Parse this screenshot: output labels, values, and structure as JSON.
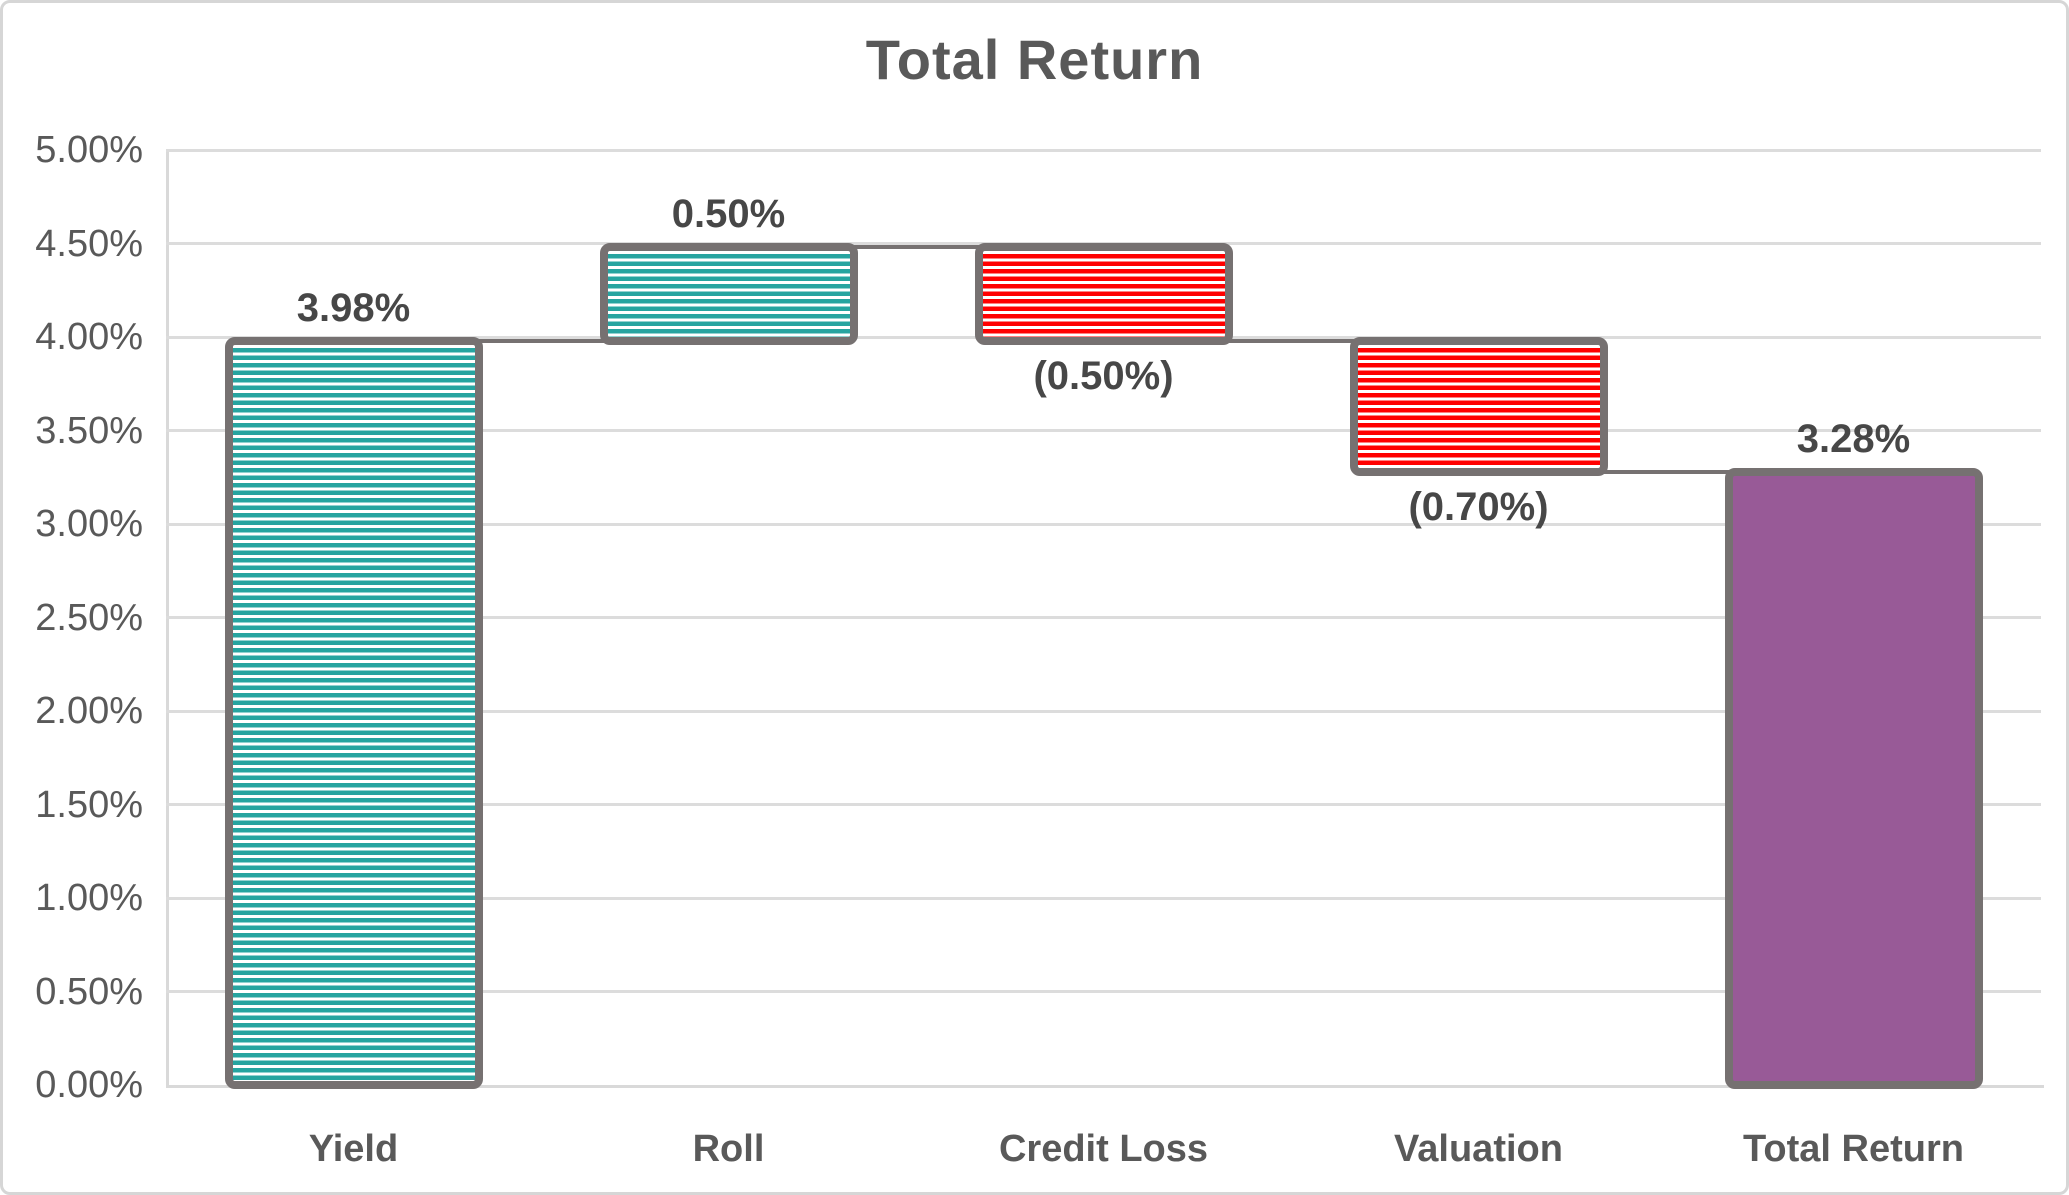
{
  "title": "Total Return",
  "chart_data": {
    "type": "waterfall",
    "title": "Total Return",
    "categories": [
      "Yield",
      "Roll",
      "Credit Loss",
      "Valuation",
      "Total Return"
    ],
    "bars": [
      {
        "category": "Yield",
        "start": 0,
        "end": 3.98,
        "kind": "increase",
        "data_label": "3.98%",
        "label_position": "above"
      },
      {
        "category": "Roll",
        "start": 3.98,
        "end": 4.48,
        "kind": "increase",
        "data_label": "0.50%",
        "label_position": "above"
      },
      {
        "category": "Credit Loss",
        "start": 4.48,
        "end": 3.98,
        "kind": "decrease",
        "data_label": "(0.50%)",
        "label_position": "below"
      },
      {
        "category": "Valuation",
        "start": 3.98,
        "end": 3.28,
        "kind": "decrease",
        "data_label": "(0.70%)",
        "label_position": "below"
      },
      {
        "category": "Total Return",
        "start": 0,
        "end": 3.28,
        "kind": "total",
        "data_label": "3.28%",
        "label_position": "above"
      }
    ],
    "y_axis": {
      "min": 0,
      "max": 5,
      "step": 0.5,
      "tick_labels": [
        "0.00%",
        "0.50%",
        "1.00%",
        "1.50%",
        "2.00%",
        "2.50%",
        "3.00%",
        "3.50%",
        "4.00%",
        "4.50%",
        "5.00%"
      ]
    },
    "grid": true,
    "legend": false,
    "colors": {
      "increase_stripe": "#27A4A0",
      "decrease_stripe": "#FF0000",
      "stripe_background": "#FFFFFF",
      "total_fill": "#985A97",
      "bar_border": "#767171",
      "connector": "#767171",
      "gridline": "#DCDCDC",
      "axis_text": "#595959",
      "data_label_text": "#474747",
      "title_text": "#595959"
    }
  }
}
